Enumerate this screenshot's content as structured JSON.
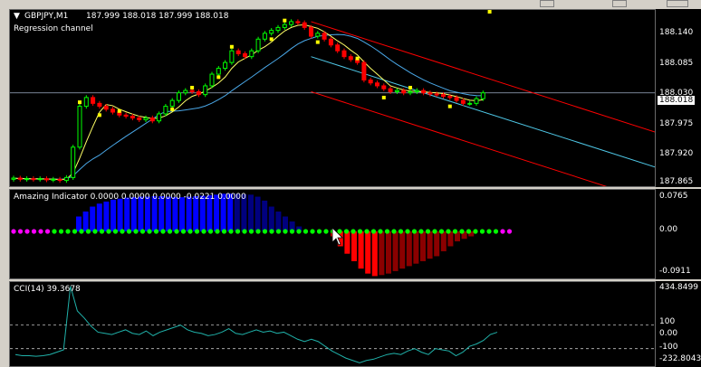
{
  "window": {
    "chart_label": "GBPJPY,M1",
    "ohlc": "187.999 188.018 187.999 188.018",
    "indicator_label": "Regression channel"
  },
  "price_axis": {
    "ticks": [
      "188.140",
      "188.085",
      "188.030",
      "187.975",
      "187.920",
      "187.865"
    ],
    "current_price": "188.018",
    "current_price_color": "#ffffff"
  },
  "amazing_panel": {
    "label": "Amazing Indicator 0.0000 0.0000 0.0000 -0.0221 0.0000",
    "ticks": [
      "0.0765",
      "0.00",
      "-0.0911"
    ],
    "up_color": "#0000ff",
    "up_fade_color": "#00007f",
    "down_color": "#ff0000",
    "down_fade_color": "#8b0000",
    "dot_green": "#00ff00",
    "dot_magenta": "#ff00ff"
  },
  "cci_panel": {
    "label": "CCI(14) 39.3678",
    "ticks": [
      "434.8499",
      "100",
      "0.00",
      "-100",
      "-232.8043"
    ],
    "line_color": "#20b2aa"
  },
  "colors": {
    "bull_candle": "#00ff00",
    "bear_candle": "#ff0000",
    "fast_ma": "#ffff66",
    "slow_ma": "#4aa8e8",
    "channel": "#ff0000",
    "regression_mid": "#4fc8e8",
    "fractal": "#ffff00"
  },
  "chart_data": [
    {
      "type": "candlestick",
      "title": "GBPJPY,M1",
      "ylim": [
        187.855,
        188.16
      ],
      "candles_close": [
        187.872,
        187.87,
        187.871,
        187.87,
        187.871,
        187.869,
        187.87,
        187.868,
        187.873,
        187.925,
        187.995,
        188.01,
        188.0,
        187.995,
        187.99,
        187.985,
        187.98,
        187.978,
        187.975,
        187.972,
        187.975,
        187.97,
        187.982,
        187.995,
        188.005,
        188.018,
        188.022,
        188.02,
        188.015,
        188.03,
        188.05,
        188.06,
        188.07,
        188.09,
        188.085,
        188.08,
        188.09,
        188.11,
        188.12,
        188.125,
        188.13,
        188.135,
        188.14,
        188.138,
        188.13,
        188.115,
        188.12,
        188.11,
        188.1,
        188.09,
        188.08,
        188.075,
        188.07,
        188.04,
        188.035,
        188.03,
        188.025,
        188.02,
        188.022,
        188.018,
        188.02,
        188.022,
        188.018,
        188.016,
        188.015,
        188.012,
        188.01,
        188.005,
        188.0,
        188.0,
        188.008,
        188.018
      ],
      "series": [
        {
          "name": "Amazing Indicator",
          "type": "bar",
          "values": [
            0.03,
            0.04,
            0.05,
            0.056,
            0.06,
            0.064,
            0.066,
            0.068,
            0.069,
            0.07,
            0.07,
            0.071,
            0.071,
            0.07,
            0.069,
            0.069,
            0.07,
            0.071,
            0.072,
            0.073,
            0.074,
            0.076,
            0.076,
            0.076,
            0.075,
            0.074,
            0.07,
            0.062,
            0.05,
            0.04,
            0.03,
            0.02,
            0.01,
            0,
            0,
            0,
            0,
            -0.01,
            -0.03,
            -0.045,
            -0.06,
            -0.075,
            -0.085,
            -0.09,
            -0.088,
            -0.085,
            -0.08,
            -0.075,
            -0.07,
            -0.065,
            -0.06,
            -0.055,
            -0.05,
            -0.04,
            -0.03,
            -0.02,
            -0.015,
            -0.01
          ]
        },
        {
          "name": "CCI(14)",
          "type": "line",
          "values": [
            -150,
            -160,
            -160,
            -165,
            -160,
            -150,
            -130,
            -110,
            430,
            220,
            160,
            90,
            40,
            30,
            20,
            40,
            60,
            30,
            20,
            50,
            10,
            40,
            60,
            80,
            100,
            60,
            40,
            30,
            10,
            20,
            40,
            70,
            30,
            20,
            40,
            60,
            40,
            50,
            30,
            40,
            10,
            -20,
            -40,
            -20,
            -40,
            -80,
            -120,
            -150,
            -180,
            -200,
            -220,
            -200,
            -190,
            -170,
            -150,
            -140,
            -150,
            -120,
            -100,
            -130,
            -150,
            -100,
            -110,
            -120,
            -160,
            -130,
            -80,
            -60,
            -30,
            20,
            39
          ]
        }
      ]
    }
  ]
}
